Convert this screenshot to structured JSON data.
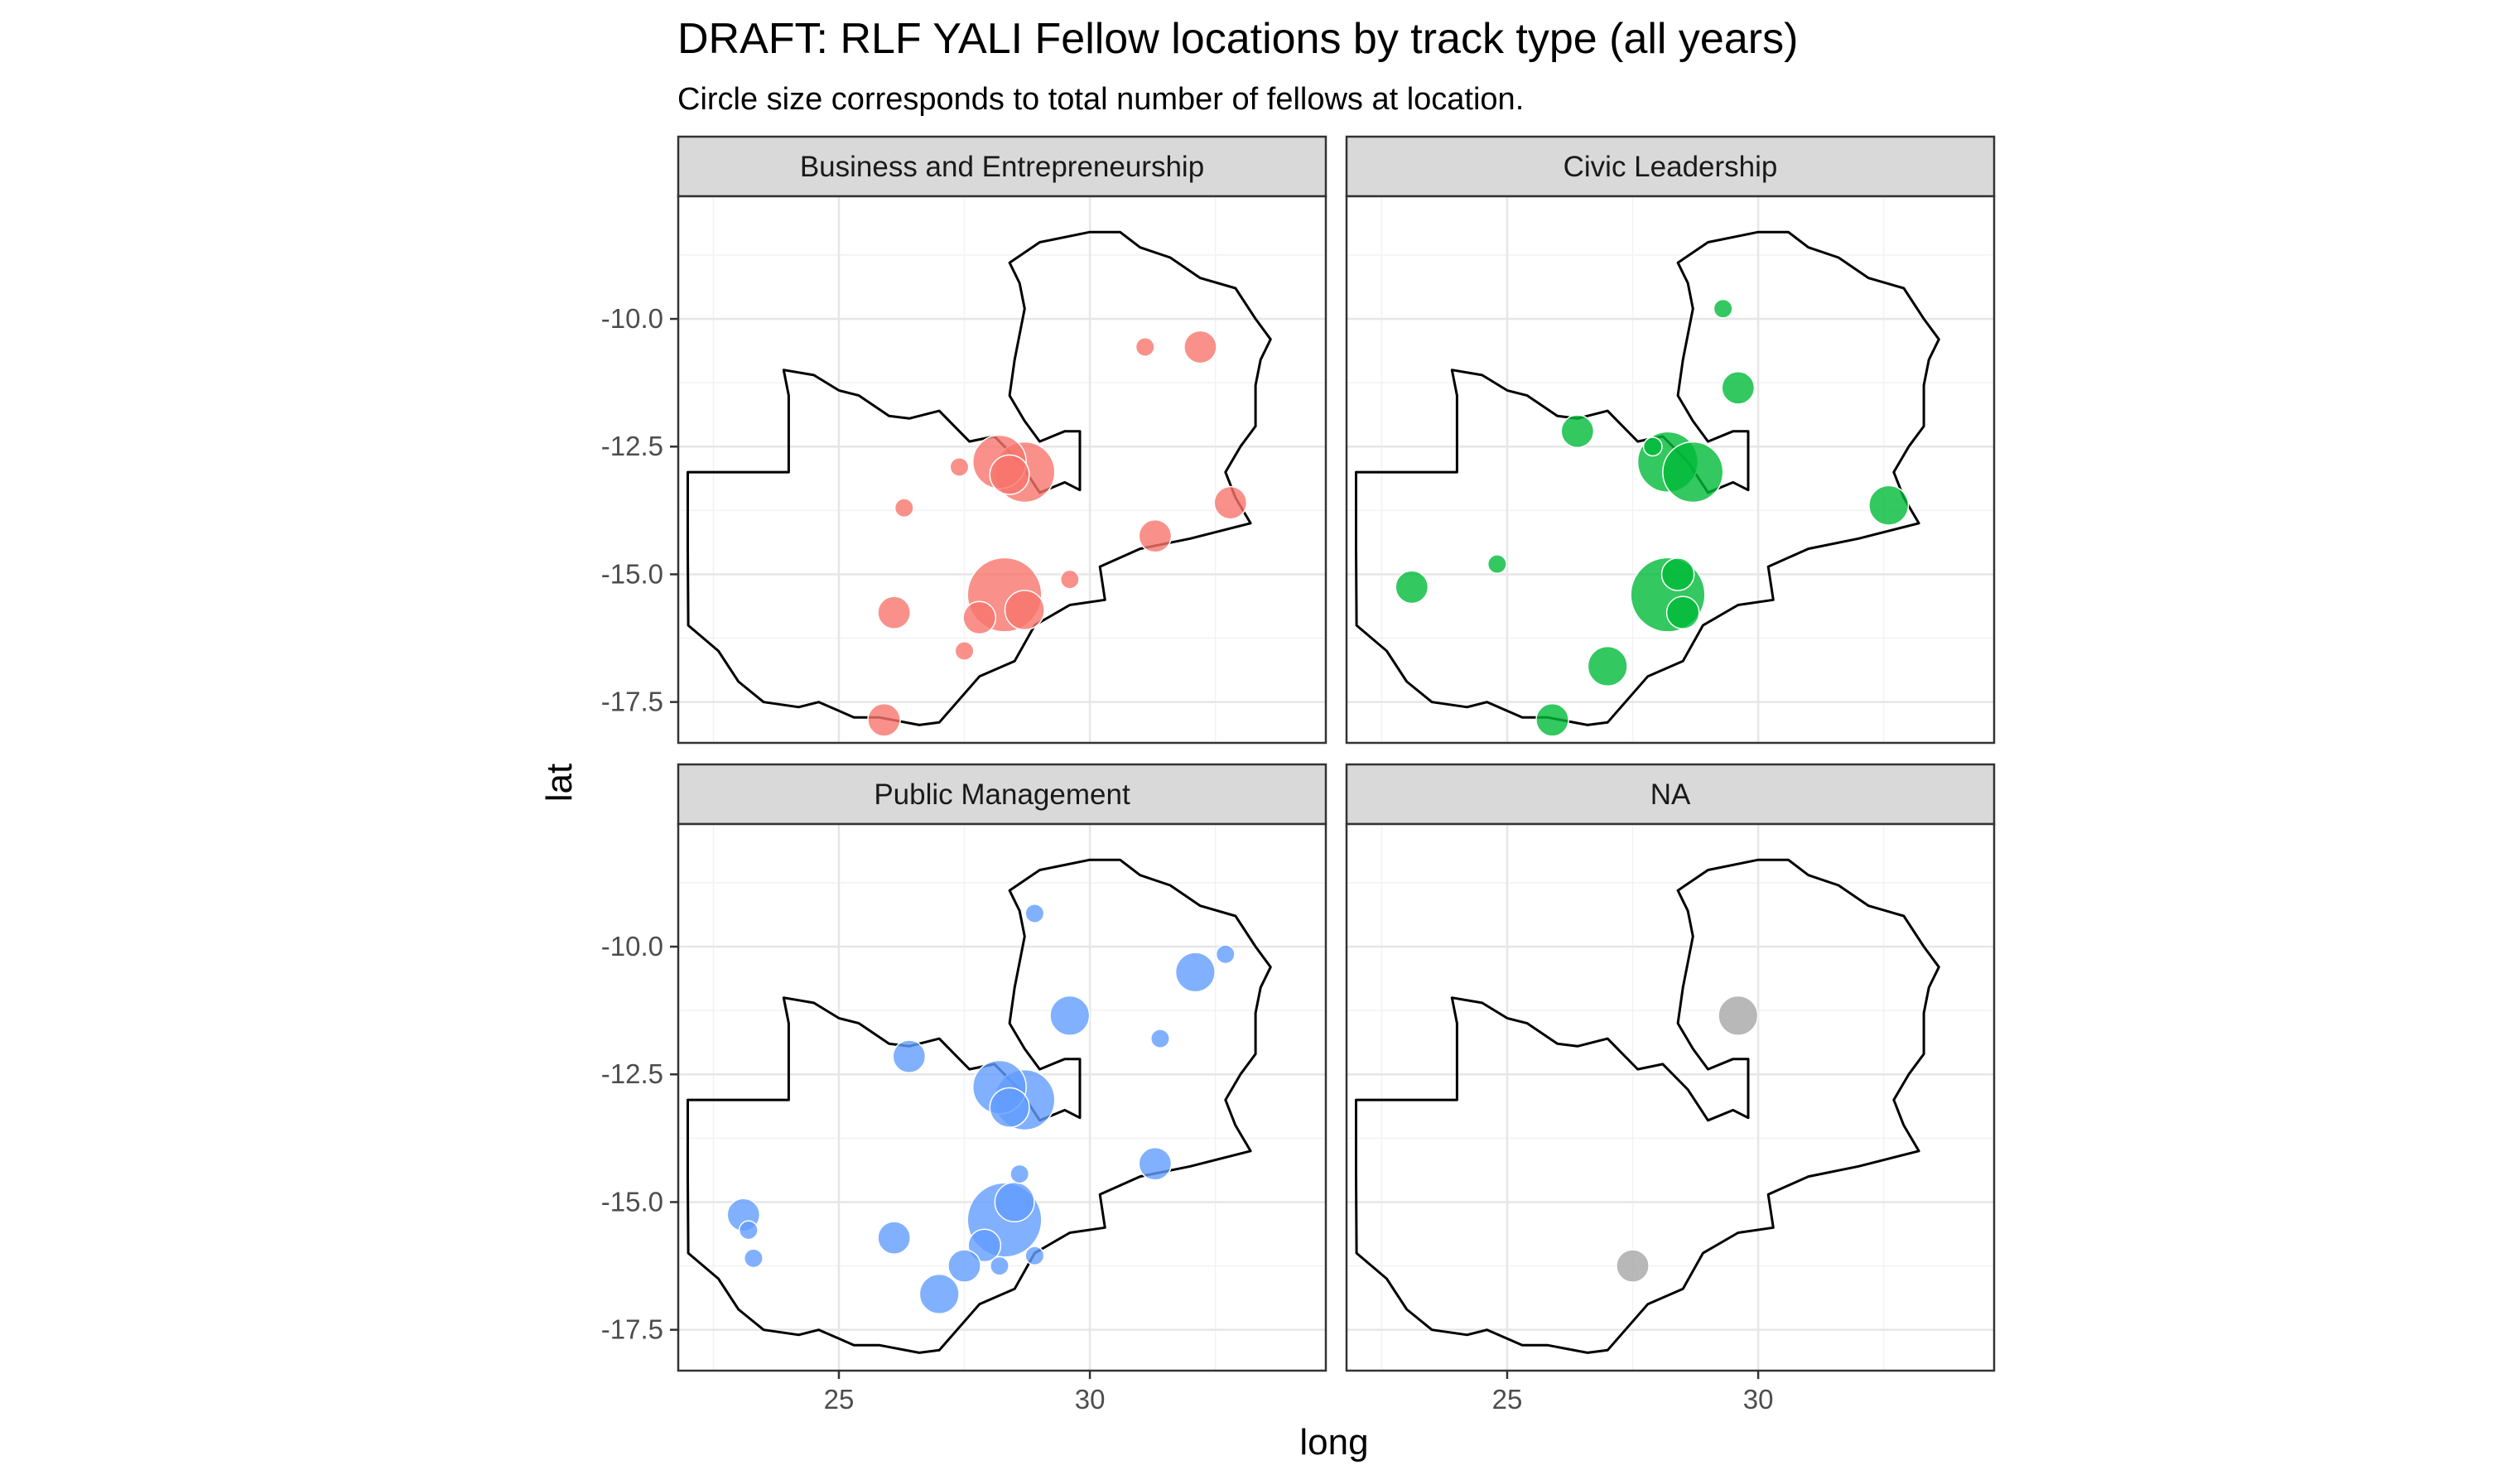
{
  "chart_data": {
    "type": "scatter",
    "title": "DRAFT: RLF YALI Fellow locations by track type (all years)",
    "subtitle": "Circle size corresponds to total number of fellows at location.",
    "xlabel": "long",
    "ylabel": "lat",
    "xlim": [
      21.8,
      34.7
    ],
    "ylim": [
      -18.3,
      -7.6
    ],
    "x_ticks": [
      25,
      30
    ],
    "y_ticks": [
      -10.0,
      -12.5,
      -15.0,
      -17.5
    ],
    "x_tick_labels": [
      "25",
      "30"
    ],
    "y_tick_labels": [
      "-10.0",
      "-12.5",
      "-15.0",
      "-17.5"
    ],
    "grid": true,
    "legend": "none",
    "facets": [
      {
        "label": "Business and Entrepreneurship",
        "color": "#F8766D",
        "points": [
          {
            "long": 32.2,
            "lat": -10.55,
            "size": 3
          },
          {
            "long": 31.1,
            "lat": -10.55,
            "size": 1
          },
          {
            "long": 28.2,
            "lat": -12.8,
            "size": 6
          },
          {
            "long": 28.7,
            "lat": -13.0,
            "size": 7
          },
          {
            "long": 28.4,
            "lat": -13.05,
            "size": 4
          },
          {
            "long": 27.4,
            "lat": -12.9,
            "size": 1
          },
          {
            "long": 26.3,
            "lat": -13.7,
            "size": 1
          },
          {
            "long": 32.8,
            "lat": -13.6,
            "size": 3
          },
          {
            "long": 31.3,
            "lat": -14.25,
            "size": 3
          },
          {
            "long": 29.6,
            "lat": -15.1,
            "size": 1
          },
          {
            "long": 28.3,
            "lat": -15.4,
            "size": 9
          },
          {
            "long": 28.7,
            "lat": -15.7,
            "size": 4
          },
          {
            "long": 27.8,
            "lat": -15.85,
            "size": 3
          },
          {
            "long": 26.1,
            "lat": -15.75,
            "size": 3
          },
          {
            "long": 27.5,
            "lat": -16.5,
            "size": 1
          },
          {
            "long": 25.9,
            "lat": -17.85,
            "size": 3
          }
        ]
      },
      {
        "label": "Civic Leadership",
        "color": "#00BA38",
        "points": [
          {
            "long": 29.3,
            "lat": -9.8,
            "size": 1
          },
          {
            "long": 29.6,
            "lat": -11.35,
            "size": 3
          },
          {
            "long": 26.4,
            "lat": -12.2,
            "size": 3
          },
          {
            "long": 27.9,
            "lat": -12.5,
            "size": 1
          },
          {
            "long": 28.2,
            "lat": -12.8,
            "size": 7
          },
          {
            "long": 28.7,
            "lat": -13.0,
            "size": 7
          },
          {
            "long": 32.6,
            "lat": -13.65,
            "size": 4
          },
          {
            "long": 24.8,
            "lat": -14.8,
            "size": 1
          },
          {
            "long": 23.1,
            "lat": -15.25,
            "size": 3
          },
          {
            "long": 28.4,
            "lat": -15.0,
            "size": 3
          },
          {
            "long": 28.2,
            "lat": -15.4,
            "size": 9
          },
          {
            "long": 28.5,
            "lat": -15.75,
            "size": 3
          },
          {
            "long": 27.0,
            "lat": -16.8,
            "size": 4
          },
          {
            "long": 25.9,
            "lat": -17.85,
            "size": 3
          }
        ]
      },
      {
        "label": "Public Management",
        "color": "#619CFF",
        "points": [
          {
            "long": 28.9,
            "lat": -9.35,
            "size": 1
          },
          {
            "long": 32.7,
            "lat": -10.15,
            "size": 1
          },
          {
            "long": 32.1,
            "lat": -10.5,
            "size": 4
          },
          {
            "long": 29.6,
            "lat": -11.35,
            "size": 4
          },
          {
            "long": 31.4,
            "lat": -11.8,
            "size": 1
          },
          {
            "long": 26.4,
            "lat": -12.15,
            "size": 3
          },
          {
            "long": 28.2,
            "lat": -12.75,
            "size": 6
          },
          {
            "long": 28.7,
            "lat": -13.0,
            "size": 7
          },
          {
            "long": 28.4,
            "lat": -13.15,
            "size": 4
          },
          {
            "long": 31.3,
            "lat": -14.25,
            "size": 3
          },
          {
            "long": 28.6,
            "lat": -14.45,
            "size": 1
          },
          {
            "long": 28.5,
            "lat": -15.0,
            "size": 4
          },
          {
            "long": 28.3,
            "lat": -15.35,
            "size": 9
          },
          {
            "long": 23.1,
            "lat": -15.25,
            "size": 3
          },
          {
            "long": 23.2,
            "lat": -15.55,
            "size": 1
          },
          {
            "long": 23.3,
            "lat": -16.1,
            "size": 1
          },
          {
            "long": 26.1,
            "lat": -15.7,
            "size": 3
          },
          {
            "long": 27.9,
            "lat": -15.85,
            "size": 3
          },
          {
            "long": 28.9,
            "lat": -16.05,
            "size": 1
          },
          {
            "long": 27.5,
            "lat": -16.25,
            "size": 3
          },
          {
            "long": 28.2,
            "lat": -16.25,
            "size": 1
          },
          {
            "long": 27.0,
            "lat": -16.8,
            "size": 4
          }
        ]
      },
      {
        "label": "NA",
        "color": "#A6A6A6",
        "points": [
          {
            "long": 29.6,
            "lat": -11.35,
            "size": 4
          },
          {
            "long": 27.5,
            "lat": -16.25,
            "size": 3
          }
        ]
      }
    ],
    "outline": [
      [
        21.99,
        -13.0
      ],
      [
        23.0,
        -13.0
      ],
      [
        24.0,
        -13.0
      ],
      [
        24.0,
        -11.5
      ],
      [
        23.9,
        -11.0
      ],
      [
        24.5,
        -11.1
      ],
      [
        25.0,
        -11.4
      ],
      [
        25.4,
        -11.5
      ],
      [
        26.0,
        -11.9
      ],
      [
        26.4,
        -11.95
      ],
      [
        27.0,
        -11.8
      ],
      [
        27.6,
        -12.4
      ],
      [
        28.1,
        -12.3
      ],
      [
        28.6,
        -12.8
      ],
      [
        29.0,
        -13.4
      ],
      [
        29.5,
        -13.2
      ],
      [
        29.8,
        -13.35
      ],
      [
        29.8,
        -12.2
      ],
      [
        29.5,
        -12.2
      ],
      [
        29.0,
        -12.4
      ],
      [
        28.7,
        -12.0
      ],
      [
        28.4,
        -11.5
      ],
      [
        28.5,
        -10.8
      ],
      [
        28.7,
        -9.8
      ],
      [
        28.6,
        -9.3
      ],
      [
        28.4,
        -8.9
      ],
      [
        29.0,
        -8.5
      ],
      [
        30.0,
        -8.3
      ],
      [
        30.6,
        -8.3
      ],
      [
        31.0,
        -8.6
      ],
      [
        31.6,
        -8.8
      ],
      [
        32.2,
        -9.2
      ],
      [
        32.9,
        -9.4
      ],
      [
        33.3,
        -10.0
      ],
      [
        33.6,
        -10.4
      ],
      [
        33.4,
        -10.8
      ],
      [
        33.3,
        -11.3
      ],
      [
        33.3,
        -12.1
      ],
      [
        33.0,
        -12.5
      ],
      [
        32.7,
        -13.0
      ],
      [
        32.9,
        -13.5
      ],
      [
        33.2,
        -14.0
      ],
      [
        32.0,
        -14.3
      ],
      [
        31.0,
        -14.5
      ],
      [
        30.2,
        -14.85
      ],
      [
        30.3,
        -15.5
      ],
      [
        29.6,
        -15.6
      ],
      [
        28.9,
        -16.0
      ],
      [
        28.5,
        -16.7
      ],
      [
        27.8,
        -17.0
      ],
      [
        27.0,
        -17.9
      ],
      [
        26.6,
        -17.95
      ],
      [
        25.8,
        -17.8
      ],
      [
        25.3,
        -17.8
      ],
      [
        24.6,
        -17.5
      ],
      [
        24.2,
        -17.6
      ],
      [
        23.5,
        -17.5
      ],
      [
        23.0,
        -17.1
      ],
      [
        22.6,
        -16.5
      ],
      [
        22.0,
        -16.0
      ],
      [
        21.99,
        -14.5
      ],
      [
        21.99,
        -13.0
      ]
    ]
  }
}
